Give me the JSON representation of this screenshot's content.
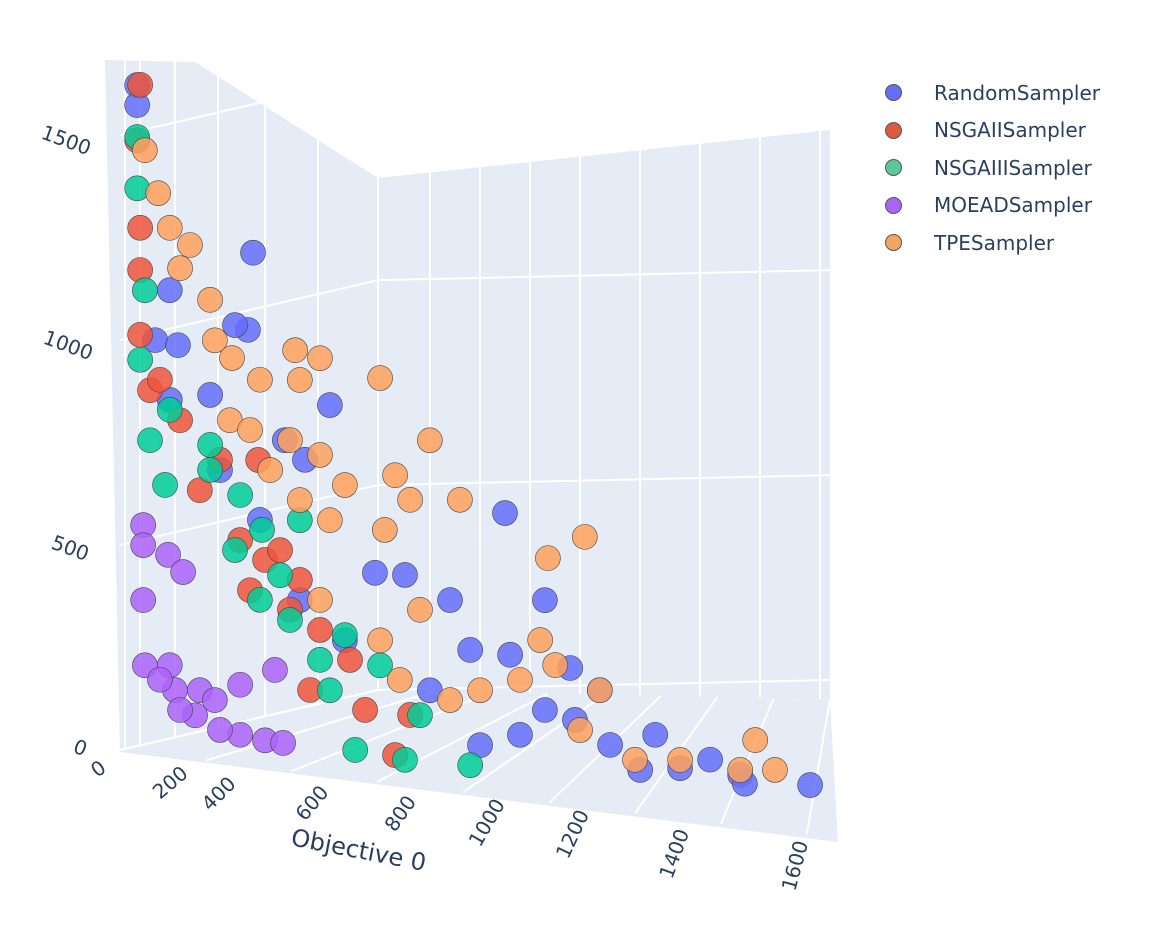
{
  "chart_data": {
    "type": "scatter3d",
    "xlabel": "Objective 0",
    "xticks": [
      "0",
      "200",
      "400",
      "600",
      "800",
      "1000",
      "1200",
      "1400",
      "1600"
    ],
    "zticks": [
      "0",
      "500",
      "1000",
      "1500"
    ],
    "xlim": [
      0,
      1650
    ],
    "zlim": [
      0,
      1650
    ],
    "grid": true,
    "legend": "top-right",
    "series": [
      {
        "name": "RandomSampler",
        "color": "#636efa",
        "points": [
          [
            40,
            1625
          ],
          [
            40,
            1576
          ],
          [
            310,
            1232
          ],
          [
            116,
            1129
          ],
          [
            298,
            1043
          ],
          [
            268,
            1053
          ],
          [
            82,
            1005
          ],
          [
            135,
            996
          ],
          [
            210,
            879
          ],
          [
            489,
            871
          ],
          [
            431,
            734
          ],
          [
            384,
            779
          ],
          [
            897,
            632
          ],
          [
            990,
            425
          ],
          [
            326,
            581
          ],
          [
            594,
            468
          ],
          [
            664,
            467
          ],
          [
            769,
            412
          ],
          [
            816,
            293
          ],
          [
            909,
            287
          ],
          [
            1049,
            263
          ],
          [
            1118,
            213
          ],
          [
            990,
            157
          ],
          [
            1060,
            137
          ],
          [
            839,
            62
          ],
          [
            932,
            93
          ],
          [
            1142,
            81
          ],
          [
            1247,
            112
          ],
          [
            1212,
            24
          ],
          [
            1305,
            34
          ],
          [
            1375,
            59
          ],
          [
            1445,
            26
          ],
          [
            1456,
            5
          ],
          [
            1608,
            11
          ],
          [
            722,
            189
          ],
          [
            524,
            299
          ],
          [
            419,
            391
          ],
          [
            233,
            697
          ],
          [
            116,
            861
          ]
        ]
      },
      {
        "name": "NSGAIISampler",
        "color": "#EF553B",
        "points": [
          [
            47,
            1626
          ],
          [
            40,
            1490
          ],
          [
            47,
            1277
          ],
          [
            47,
            1174
          ],
          [
            47,
            1016
          ],
          [
            70,
            882
          ],
          [
            140,
            813
          ],
          [
            233,
            722
          ],
          [
            322,
            727
          ],
          [
            280,
            529
          ],
          [
            338,
            484
          ],
          [
            303,
            408
          ],
          [
            396,
            366
          ],
          [
            466,
            321
          ],
          [
            536,
            252
          ],
          [
            443,
            173
          ],
          [
            571,
            132
          ],
          [
            641,
            26
          ],
          [
            676,
            126
          ],
          [
            373,
            510
          ],
          [
            186,
            645
          ],
          [
            93,
            909
          ],
          [
            419,
            440
          ]
        ]
      },
      {
        "name": "NSGAIIISampler",
        "color": "#00cc96",
        "points": [
          [
            40,
            1498
          ],
          [
            40,
            1373
          ],
          [
            58,
            1125
          ],
          [
            47,
            955
          ],
          [
            105,
            653
          ],
          [
            116,
            837
          ],
          [
            210,
            757
          ],
          [
            280,
            639
          ],
          [
            268,
            504
          ],
          [
            331,
            557
          ],
          [
            373,
            449
          ],
          [
            396,
            341
          ],
          [
            466,
            248
          ],
          [
            489,
            175
          ],
          [
            548,
            33
          ],
          [
            606,
            243
          ],
          [
            664,
            16
          ],
          [
            699,
            127
          ],
          [
            816,
            12
          ],
          [
            210,
            696
          ],
          [
            70,
            760
          ],
          [
            419,
            586
          ],
          [
            326,
            386
          ],
          [
            524,
            312
          ]
        ]
      },
      {
        "name": "MOEADSampler",
        "color": "#ab63fa",
        "points": [
          [
            54,
            552
          ],
          [
            54,
            503
          ],
          [
            112,
            483
          ],
          [
            147,
            443
          ],
          [
            54,
            369
          ],
          [
            58,
            210
          ],
          [
            116,
            214
          ],
          [
            128,
            154
          ],
          [
            186,
            157
          ],
          [
            221,
            135
          ],
          [
            280,
            176
          ],
          [
            280,
            54
          ],
          [
            338,
            44
          ],
          [
            380,
            40
          ],
          [
            233,
            63
          ],
          [
            175,
            95
          ],
          [
            140,
            106
          ],
          [
            361,
            217
          ],
          [
            93,
            177
          ]
        ]
      },
      {
        "name": "TPESampler",
        "color": "#FFA15A",
        "points": [
          [
            58,
            1467
          ],
          [
            89,
            1364
          ],
          [
            116,
            1281
          ],
          [
            163,
            1242
          ],
          [
            140,
            1184
          ],
          [
            210,
            1111
          ],
          [
            221,
            1013
          ],
          [
            261,
            972
          ],
          [
            326,
            923
          ],
          [
            408,
            1000
          ],
          [
            466,
            984
          ],
          [
            606,
            944
          ],
          [
            419,
            928
          ],
          [
            256,
            820
          ],
          [
            396,
            780
          ],
          [
            466,
            748
          ],
          [
            722,
            799
          ],
          [
            524,
            678
          ],
          [
            641,
            709
          ],
          [
            676,
            651
          ],
          [
            792,
            658
          ],
          [
            617,
            574
          ],
          [
            1083,
            585
          ],
          [
            997,
            528
          ],
          [
            489,
            590
          ],
          [
            466,
            394
          ],
          [
            606,
            304
          ],
          [
            699,
            384
          ],
          [
            652,
            210
          ],
          [
            839,
            196
          ],
          [
            979,
            327
          ],
          [
            1014,
            268
          ],
          [
            1118,
            213
          ],
          [
            932,
            227
          ],
          [
            1072,
            113
          ],
          [
            1200,
            48
          ],
          [
            1305,
            54
          ],
          [
            1480,
            113
          ],
          [
            1445,
            38
          ],
          [
            1526,
            43
          ],
          [
            769,
            168
          ],
          [
            419,
            635
          ],
          [
            350,
            704
          ],
          [
            303,
            799
          ]
        ]
      }
    ]
  }
}
